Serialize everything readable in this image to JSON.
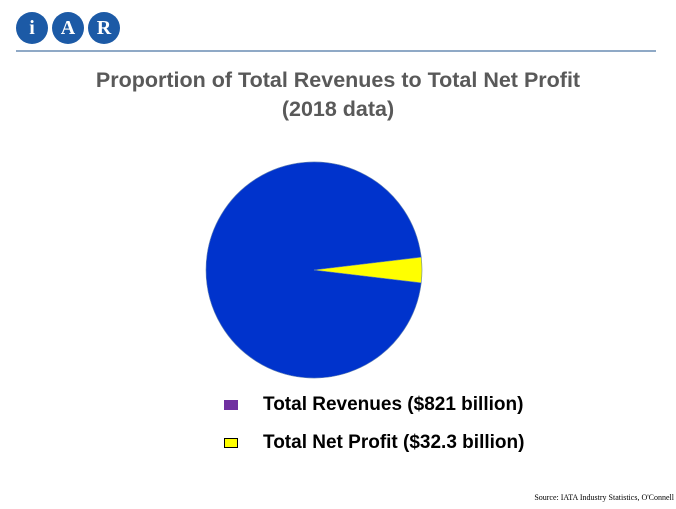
{
  "logo": {
    "letters": [
      "i",
      "A",
      "R"
    ]
  },
  "slide": {
    "title_line1": "Proportion of Total Revenues to Total Net Profit",
    "title_line2": "(2018 data)",
    "source": "Source: IATA Industry Statistics, O'Connell"
  },
  "colors": {
    "logo_blue": "#1c5aa6",
    "title_gray": "#595959",
    "revenues_slice": "#0033cc",
    "profit_slice": "#ffff00",
    "revenues_legend_swatch": "#7030a0"
  },
  "chart_data": {
    "type": "pie",
    "title": "Proportion of Total Revenues to Total Net Profit (2018 data)",
    "legend_position": "bottom",
    "slices": [
      {
        "label": "Total Revenues ($821 billion)",
        "value": 821,
        "color": "#0033cc",
        "legend_color": "#7030a0"
      },
      {
        "label": "Total Net Profit ($32.3 billion)",
        "value": 32.3,
        "color": "#ffff00",
        "legend_color": "#ffff00"
      }
    ]
  }
}
